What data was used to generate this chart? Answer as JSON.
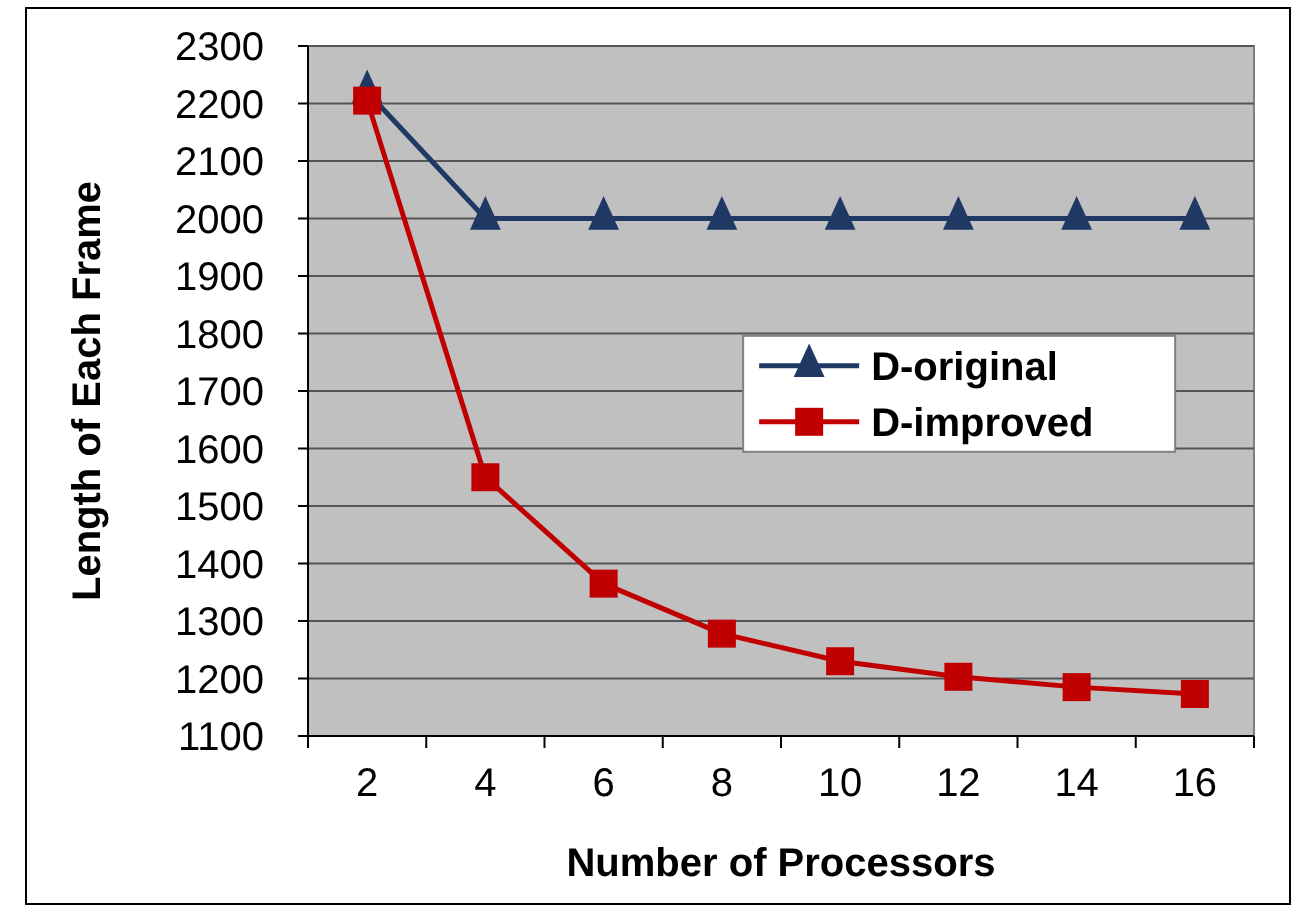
{
  "chart_data": {
    "type": "line",
    "xlabel": "Number of Processors",
    "ylabel": "Length of Each Frame",
    "categories": [
      "2",
      "4",
      "6",
      "8",
      "10",
      "12",
      "14",
      "16"
    ],
    "series": [
      {
        "name": "D-original",
        "color": "#1f3864",
        "marker": "triangle",
        "values": [
          2220,
          2000,
          2000,
          2000,
          2000,
          2000,
          2000,
          2000
        ]
      },
      {
        "name": "D-improved",
        "color": "#c00000",
        "marker": "square",
        "values": [
          2205,
          1550,
          1365,
          1278,
          1230,
          1203,
          1185,
          1173
        ]
      }
    ],
    "ylim": [
      1100,
      2300
    ],
    "yticks": [
      1100,
      1200,
      1300,
      1400,
      1500,
      1600,
      1700,
      1800,
      1900,
      2000,
      2100,
      2200,
      2300
    ],
    "grid": "y",
    "legend": "right"
  }
}
